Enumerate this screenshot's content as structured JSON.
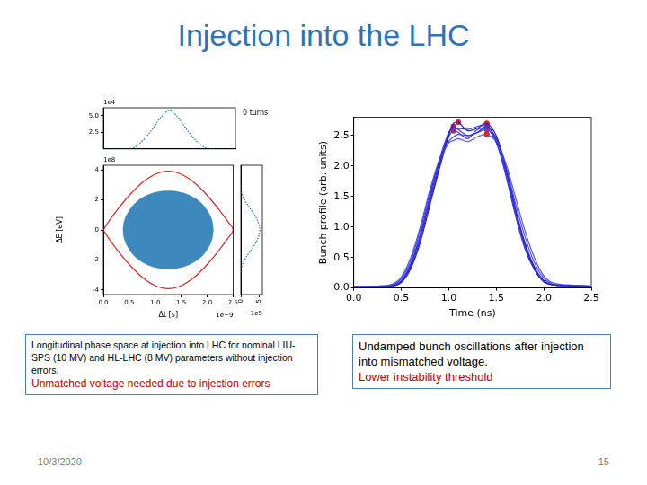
{
  "slide": {
    "title": "Injection into the LHC",
    "date": "10/3/2020",
    "page": 15,
    "captions": [
      {
        "text": "Longitudinal phase space at injection into LHC for nominal LIU-SPS (10 MV) and HL-LHC (8 MV) parameters without injection errors.",
        "highlight": "Unmatched voltage needed due to injection errors"
      },
      {
        "text": "Undamped bunch oscillations after injection into mismatched voltage.",
        "highlight": "Lower instability threshold"
      }
    ]
  },
  "chart_data": [
    {
      "type": "line",
      "title": "0 turns",
      "line_style": "dotted",
      "color": "#1f77b4",
      "tick_labels": "y",
      "xlim": [
        0,
        2.5
      ],
      "ylim": [
        0,
        6.2
      ],
      "yticks": [
        {
          "value": 2.5,
          "label": "2.5"
        },
        {
          "value": 5,
          "label": "5.0"
        }
      ],
      "annotations": [
        {
          "text": "1e4",
          "axis": "y"
        }
      ],
      "x": [
        0,
        0.25,
        0.5,
        0.6,
        0.7,
        0.8,
        0.9,
        1.0,
        1.1,
        1.25,
        1.4,
        1.5,
        1.6,
        1.7,
        1.8,
        1.9,
        2.0,
        2.25,
        2.5
      ],
      "values": [
        0,
        0,
        0.05,
        0.3,
        0.9,
        1.7,
        2.7,
        3.8,
        4.9,
        5.8,
        4.9,
        3.8,
        2.7,
        1.7,
        0.9,
        0.3,
        0.05,
        0,
        0
      ]
    },
    {
      "type": "scatter",
      "x_label": "Δt [s]",
      "y_label": "ΔE [eV]",
      "xlim": [
        0,
        2.5
      ],
      "ylim": [
        -4.3,
        4.3
      ],
      "xticks": [
        {
          "value": 0,
          "label": "0.0"
        },
        {
          "value": 0.5,
          "label": "0.5"
        },
        {
          "value": 1,
          "label": "1.0"
        },
        {
          "value": 1.5,
          "label": "1.5"
        },
        {
          "value": 2,
          "label": "2.0"
        },
        {
          "value": 2.5,
          "label": "2.5"
        }
      ],
      "yticks": [
        -4,
        -2,
        0,
        2,
        4
      ],
      "annotations": [
        {
          "text": "1e8",
          "axis": "y"
        },
        {
          "text": "1e−9",
          "axis": "x"
        }
      ],
      "series": [
        {
          "type": "area",
          "color": "#1f77b4",
          "x": [
            2.12,
            2.09,
            2.0,
            1.87,
            1.69,
            1.48,
            1.25,
            1.02,
            0.81,
            0.63,
            0.5,
            0.41,
            0.38,
            0.41,
            0.5,
            0.63,
            0.81,
            1.02,
            1.25,
            1.48,
            1.69,
            1.87,
            2.0,
            2.09,
            2.12
          ],
          "values": [
            0,
            0.67,
            1.3,
            1.84,
            2.25,
            2.51,
            2.6,
            2.51,
            2.25,
            1.84,
            1.3,
            0.67,
            0,
            -0.67,
            -1.3,
            -1.84,
            -2.25,
            -2.51,
            -2.6,
            -2.51,
            -2.25,
            -1.84,
            -1.3,
            -0.67,
            0
          ]
        },
        {
          "type": "line",
          "color": "#d62728",
          "x": [
            0,
            0.1,
            0.25,
            0.5,
            0.75,
            1.0,
            1.25,
            1.5,
            1.75,
            2.0,
            2.25,
            2.4,
            2.5,
            2.4,
            2.25,
            2.0,
            1.75,
            1.5,
            1.25,
            1.0,
            0.75,
            0.5,
            0.25,
            0.1,
            0
          ],
          "values": [
            0,
            0.55,
            1.25,
            2.3,
            3.15,
            3.7,
            3.9,
            3.7,
            3.15,
            2.3,
            1.25,
            0.55,
            0,
            -0.55,
            -1.25,
            -2.3,
            -3.15,
            -3.7,
            -3.9,
            -3.7,
            -3.15,
            -2.3,
            -1.25,
            -0.55,
            0
          ]
        }
      ]
    },
    {
      "type": "line",
      "line_style": "dotted",
      "color": "#1f77b4",
      "tick_labels": "x",
      "xlim": [
        0,
        6
      ],
      "xticks": [
        0,
        5
      ],
      "ylim": [
        -4.3,
        4.3
      ],
      "annotations": [
        {
          "text": "1e5",
          "axis": "x"
        }
      ],
      "x": [
        0,
        0.1,
        0.6,
        1.5,
        2.7,
        3.8,
        4.7,
        5.2,
        5.3,
        5.2,
        4.7,
        3.8,
        2.7,
        1.5,
        0.6,
        0.1,
        0
      ],
      "values": [
        -3,
        -2.6,
        -2.2,
        -1.8,
        -1.4,
        -1.0,
        -0.6,
        -0.2,
        0,
        0.2,
        0.6,
        1.0,
        1.4,
        1.8,
        2.2,
        2.6,
        3
      ]
    },
    {
      "type": "line",
      "x_label": "Time (ns)",
      "y_label": "Bunch profile (arb. units)",
      "xlim": [
        0,
        2.5
      ],
      "ylim": [
        0,
        2.8
      ],
      "xticks": [
        {
          "value": 0,
          "label": "0.0"
        },
        {
          "value": 0.5,
          "label": "0.5"
        },
        {
          "value": 1,
          "label": "1.0"
        },
        {
          "value": 1.5,
          "label": "1.5"
        },
        {
          "value": 2,
          "label": "2.0"
        },
        {
          "value": 2.5,
          "label": "2.5"
        }
      ],
      "yticks": [
        {
          "value": 0,
          "label": "0.0"
        },
        {
          "value": 0.5,
          "label": "0.5"
        },
        {
          "value": 1,
          "label": "1.0"
        },
        {
          "value": 1.5,
          "label": "1.5"
        },
        {
          "value": 2,
          "label": "2.0"
        },
        {
          "value": 2.5,
          "label": "2.5"
        }
      ],
      "x": [
        0,
        0.25,
        0.4,
        0.5,
        0.6,
        0.7,
        0.8,
        0.9,
        1.0,
        1.05,
        1.1,
        1.2,
        1.3,
        1.4,
        1.5,
        1.6,
        1.7,
        1.8,
        1.9,
        2.0,
        2.1,
        2.25,
        2.5
      ],
      "series": [
        {
          "color": "#2a2ad6",
          "values": [
            0.02,
            0.02,
            0.03,
            0.1,
            0.35,
            0.8,
            1.4,
            2.0,
            2.55,
            2.65,
            2.6,
            2.5,
            2.55,
            2.65,
            2.45,
            1.95,
            1.3,
            0.75,
            0.35,
            0.12,
            0.05,
            0.04,
            0.03
          ]
        },
        {
          "color": "#3333e0",
          "values": [
            0.02,
            0.02,
            0.04,
            0.12,
            0.4,
            0.88,
            1.5,
            2.1,
            2.55,
            2.62,
            2.62,
            2.6,
            2.65,
            2.68,
            2.4,
            1.85,
            1.2,
            0.65,
            0.3,
            0.1,
            0.05,
            0.04,
            0.03
          ]
        },
        {
          "color": "#4a4ae0",
          "values": [
            0.02,
            0.03,
            0.05,
            0.15,
            0.45,
            0.95,
            1.55,
            2.05,
            2.4,
            2.48,
            2.52,
            2.5,
            2.55,
            2.6,
            2.45,
            2.0,
            1.4,
            0.85,
            0.42,
            0.16,
            0.06,
            0.04,
            0.03
          ]
        },
        {
          "color": "#5555dd",
          "values": [
            0.02,
            0.03,
            0.06,
            0.18,
            0.5,
            1.0,
            1.6,
            2.1,
            2.38,
            2.42,
            2.45,
            2.4,
            2.48,
            2.52,
            2.4,
            2.05,
            1.5,
            0.95,
            0.5,
            0.2,
            0.08,
            0.05,
            0.03
          ]
        },
        {
          "color": "#1c1cc8",
          "values": [
            0.02,
            0.02,
            0.03,
            0.09,
            0.32,
            0.75,
            1.35,
            1.95,
            2.5,
            2.7,
            2.72,
            2.58,
            2.62,
            2.7,
            2.5,
            2.0,
            1.32,
            0.72,
            0.33,
            0.1,
            0.05,
            0.04,
            0.03
          ]
        },
        {
          "color": "#3b3bd8",
          "values": [
            0.02,
            0.02,
            0.04,
            0.11,
            0.38,
            0.85,
            1.45,
            2.05,
            2.48,
            2.58,
            2.55,
            2.45,
            2.6,
            2.62,
            2.38,
            1.9,
            1.25,
            0.7,
            0.32,
            0.11,
            0.05,
            0.04,
            0.03
          ]
        },
        {
          "type": "scatter",
          "marker": "circle",
          "color": "#d62728",
          "x": [
            1.05,
            1.05,
            1.1,
            1.05,
            1.4,
            1.4,
            1.4,
            1.4,
            1.4,
            1.4
          ],
          "values": [
            2.65,
            2.62,
            2.72,
            2.58,
            2.65,
            2.68,
            2.7,
            2.62,
            2.6,
            2.52
          ]
        }
      ]
    }
  ]
}
